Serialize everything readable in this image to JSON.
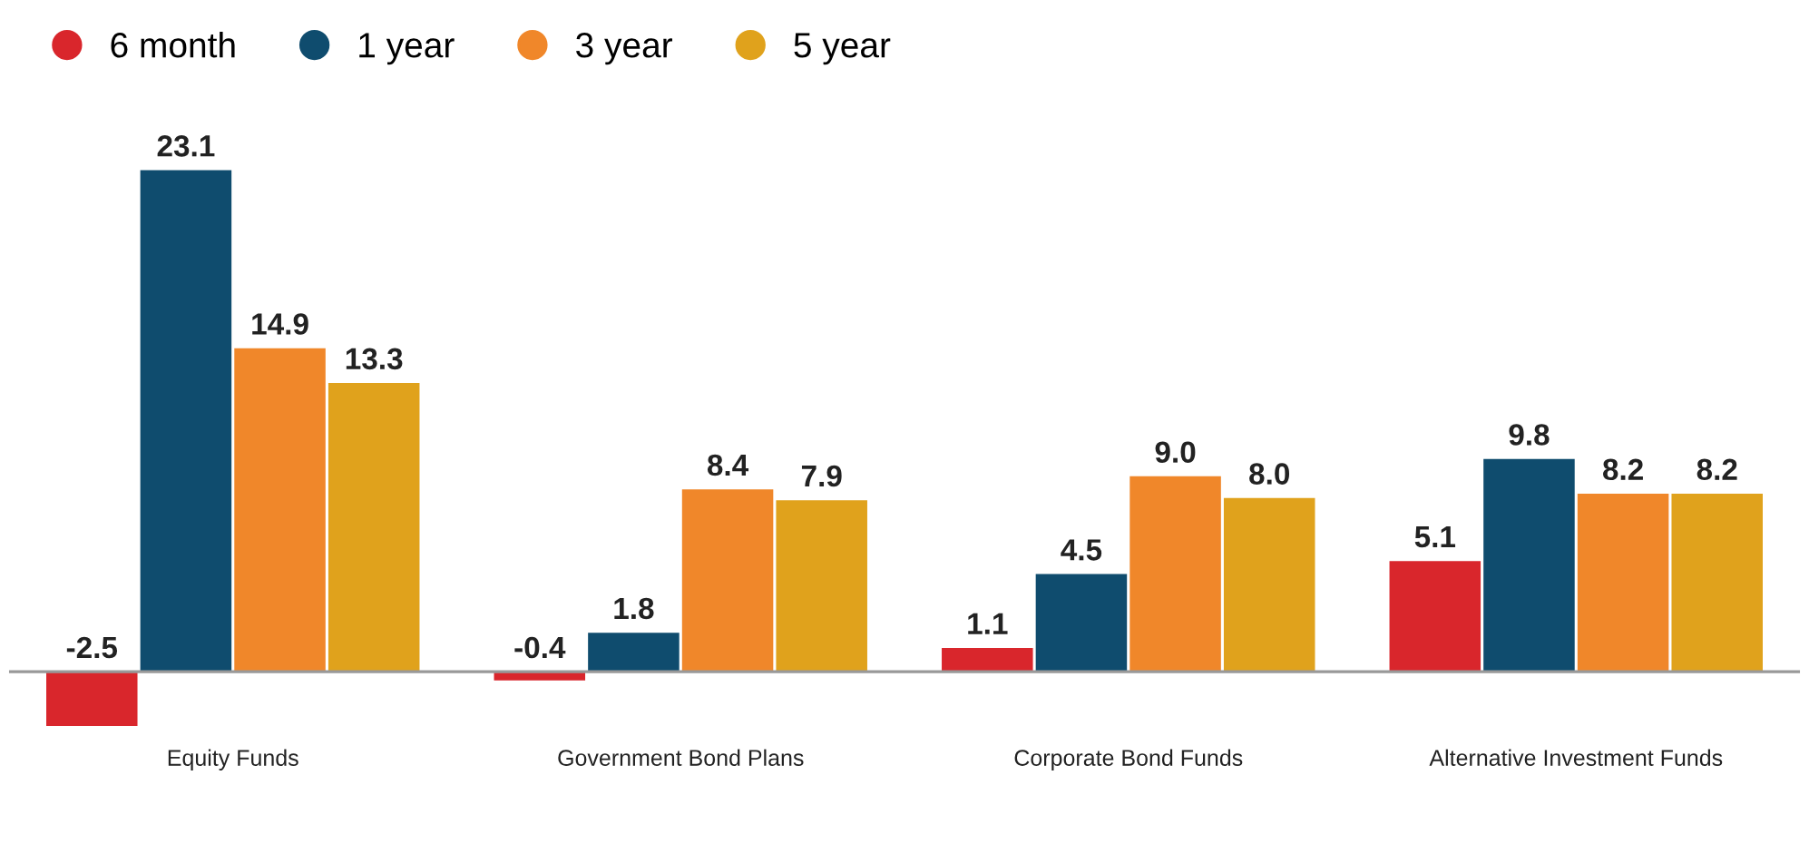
{
  "chart_data": {
    "type": "bar",
    "categories": [
      "Equity Funds",
      "Government Bond Plans",
      "Corporate Bond Funds",
      "Alternative Investment Funds"
    ],
    "series": [
      {
        "name": "6 month",
        "color": "#d9262c",
        "values": [
          -2.5,
          -0.4,
          1.1,
          5.1
        ],
        "value_labels": [
          "-2.5",
          "-0.4",
          "1.1",
          "5.1"
        ]
      },
      {
        "name": "1 year",
        "color": "#0f4c6e",
        "values": [
          23.1,
          1.8,
          4.5,
          9.8
        ],
        "value_labels": [
          "23.1",
          "1.8",
          "4.5",
          "9.8"
        ]
      },
      {
        "name": "3 year",
        "color": "#f0872a",
        "values": [
          14.9,
          8.4,
          9.0,
          8.2
        ],
        "value_labels": [
          "14.9",
          "8.4",
          "9.0",
          "8.2"
        ]
      },
      {
        "name": "5 year",
        "color": "#e0a21c",
        "values": [
          13.3,
          7.9,
          8.0,
          8.2
        ],
        "value_labels": [
          "13.3",
          "7.9",
          "8.0",
          "8.2"
        ]
      }
    ],
    "legend": "top left"
  }
}
